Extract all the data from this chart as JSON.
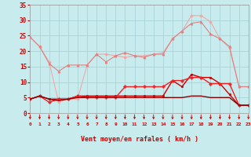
{
  "xlabel": "Vent moyen/en rafales ( km/h )",
  "xlim": [
    0,
    23
  ],
  "ylim": [
    0,
    35
  ],
  "yticks": [
    0,
    5,
    10,
    15,
    20,
    25,
    30,
    35
  ],
  "xticks": [
    0,
    1,
    2,
    3,
    4,
    5,
    6,
    7,
    8,
    9,
    10,
    11,
    12,
    13,
    14,
    15,
    16,
    17,
    18,
    19,
    20,
    21,
    22,
    23
  ],
  "bg_color": "#c8ecee",
  "grid_color": "#a8d4d8",
  "tick_color": "#cc0000",
  "series": [
    {
      "x": [
        0,
        1,
        2,
        3,
        4,
        5,
        6,
        7,
        8,
        9,
        10,
        11,
        12,
        13,
        14,
        15,
        16,
        17,
        18,
        19,
        20,
        21,
        22,
        23
      ],
      "y": [
        24.5,
        21.5,
        16.5,
        3.5,
        4.5,
        4.5,
        15.5,
        19.0,
        19.0,
        18.5,
        18.0,
        18.5,
        18.5,
        19.0,
        19.5,
        24.0,
        26.5,
        31.5,
        31.5,
        29.5,
        24.0,
        21.0,
        8.5,
        8.5
      ],
      "color": "#f0a8a8",
      "marker": "D",
      "markersize": 1.8,
      "linewidth": 0.8
    },
    {
      "x": [
        0,
        1,
        2,
        3,
        4,
        5,
        6,
        7,
        8,
        9,
        10,
        11,
        12,
        13,
        14,
        15,
        16,
        17,
        18,
        19,
        20,
        21,
        22,
        23
      ],
      "y": [
        24.5,
        21.5,
        16.0,
        13.5,
        15.5,
        15.5,
        15.5,
        19.0,
        16.5,
        18.5,
        19.5,
        18.5,
        18.0,
        19.0,
        19.0,
        24.0,
        26.5,
        29.0,
        29.5,
        25.5,
        24.0,
        21.5,
        8.5,
        8.5
      ],
      "color": "#e08080",
      "marker": "^",
      "markersize": 2.2,
      "linewidth": 0.8
    },
    {
      "x": [
        0,
        1,
        2,
        3,
        4,
        5,
        6,
        7,
        8,
        9,
        10,
        11,
        12,
        13,
        14,
        15,
        16,
        17,
        18,
        19,
        20,
        21,
        22,
        23
      ],
      "y": [
        4.5,
        5.5,
        4.5,
        4.5,
        4.5,
        5.5,
        5.5,
        5.5,
        5.5,
        5.5,
        5.5,
        5.5,
        5.5,
        5.5,
        5.5,
        10.5,
        8.5,
        12.5,
        11.5,
        11.5,
        9.5,
        6.0,
        2.5,
        2.5
      ],
      "color": "#cc0000",
      "marker": "s",
      "markersize": 2.0,
      "linewidth": 1.0
    },
    {
      "x": [
        0,
        1,
        2,
        3,
        4,
        5,
        6,
        7,
        8,
        9,
        10,
        11,
        12,
        13,
        14,
        15,
        16,
        17,
        18,
        19,
        20,
        21,
        22,
        23
      ],
      "y": [
        4.5,
        5.5,
        3.5,
        4.5,
        4.5,
        5.5,
        5.0,
        5.0,
        5.0,
        5.0,
        8.5,
        8.5,
        8.5,
        8.5,
        8.5,
        10.5,
        10.5,
        11.5,
        11.5,
        9.5,
        9.5,
        9.5,
        2.5,
        2.5
      ],
      "color": "#ee2222",
      "marker": "P",
      "markersize": 2.5,
      "linewidth": 1.0
    },
    {
      "x": [
        0,
        1,
        2,
        3,
        4,
        5,
        6,
        7,
        8,
        9,
        10,
        11,
        12,
        13,
        14,
        15,
        16,
        17,
        18,
        19,
        20,
        21,
        22,
        23
      ],
      "y": [
        4.5,
        5.5,
        4.5,
        4.0,
        4.5,
        5.0,
        5.0,
        5.0,
        5.0,
        5.0,
        5.0,
        5.0,
        5.0,
        5.0,
        5.0,
        5.0,
        5.0,
        5.5,
        5.5,
        5.0,
        5.0,
        5.0,
        2.5,
        2.5
      ],
      "color": "#880000",
      "marker": "None",
      "markersize": 0,
      "linewidth": 1.0
    }
  ]
}
